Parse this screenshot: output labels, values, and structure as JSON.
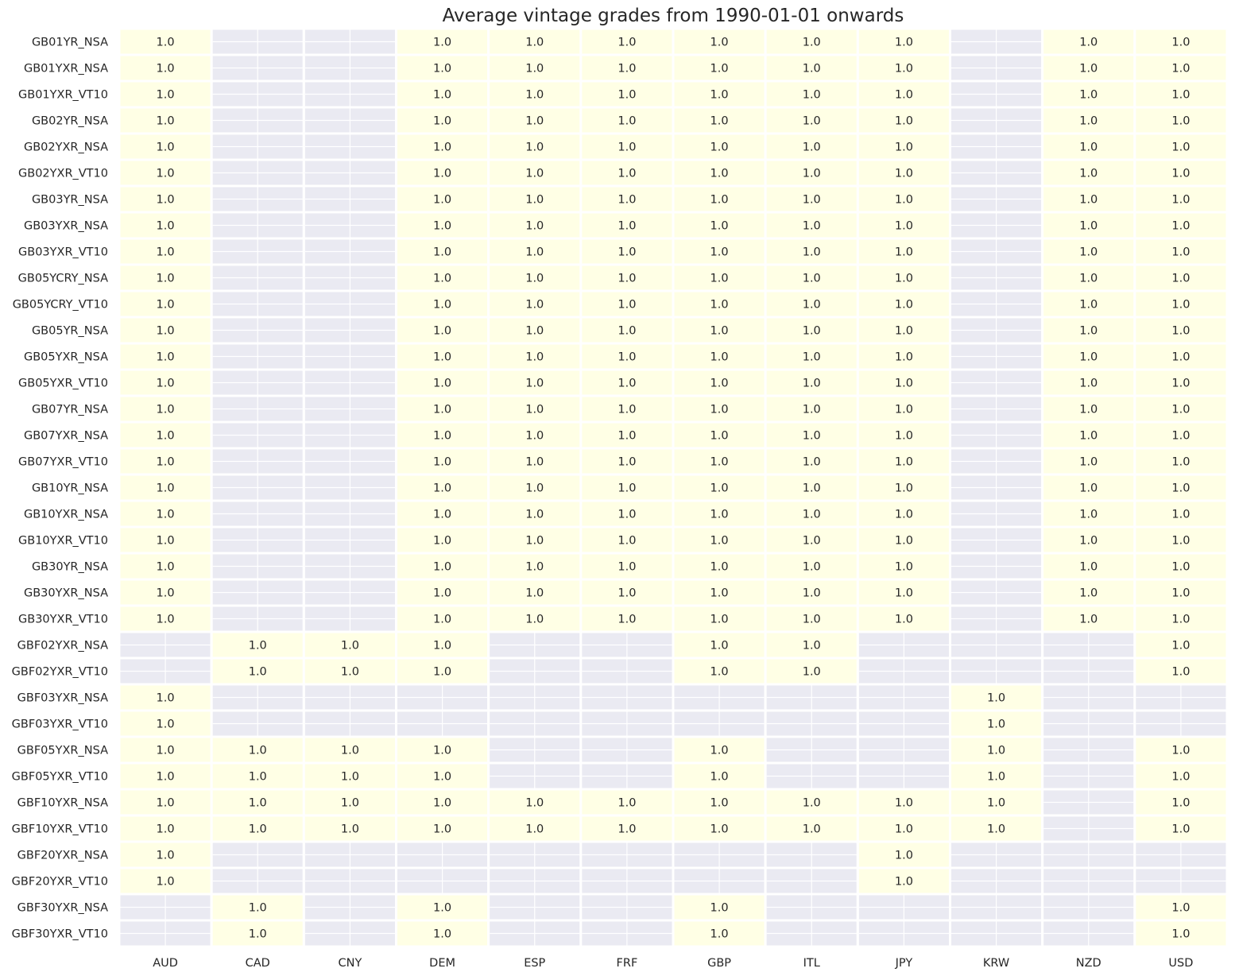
{
  "chart_data": {
    "type": "heatmap",
    "title": "Average vintage grades from 1990-01-01 onwards",
    "xlabel": "",
    "ylabel": "",
    "columns": [
      "AUD",
      "CAD",
      "CNY",
      "DEM",
      "ESP",
      "FRF",
      "GBP",
      "ITL",
      "JPY",
      "KRW",
      "NZD",
      "USD"
    ],
    "rows": [
      "GB01YR_NSA",
      "GB01YXR_NSA",
      "GB01YXR_VT10",
      "GB02YR_NSA",
      "GB02YXR_NSA",
      "GB02YXR_VT10",
      "GB03YR_NSA",
      "GB03YXR_NSA",
      "GB03YXR_VT10",
      "GB05YCRY_NSA",
      "GB05YCRY_VT10",
      "GB05YR_NSA",
      "GB05YXR_NSA",
      "GB05YXR_VT10",
      "GB07YR_NSA",
      "GB07YXR_NSA",
      "GB07YXR_VT10",
      "GB10YR_NSA",
      "GB10YXR_NSA",
      "GB10YXR_VT10",
      "GB30YR_NSA",
      "GB30YXR_NSA",
      "GB30YXR_VT10",
      "GBF02YXR_NSA",
      "GBF02YXR_VT10",
      "GBF03YXR_NSA",
      "GBF03YXR_VT10",
      "GBF05YXR_NSA",
      "GBF05YXR_VT10",
      "GBF10YXR_NSA",
      "GBF10YXR_VT10",
      "GBF20YXR_NSA",
      "GBF20YXR_VT10",
      "GBF30YXR_NSA",
      "GBF30YXR_VT10"
    ],
    "values": [
      [
        1.0,
        null,
        null,
        1.0,
        1.0,
        1.0,
        1.0,
        1.0,
        1.0,
        null,
        1.0,
        1.0
      ],
      [
        1.0,
        null,
        null,
        1.0,
        1.0,
        1.0,
        1.0,
        1.0,
        1.0,
        null,
        1.0,
        1.0
      ],
      [
        1.0,
        null,
        null,
        1.0,
        1.0,
        1.0,
        1.0,
        1.0,
        1.0,
        null,
        1.0,
        1.0
      ],
      [
        1.0,
        null,
        null,
        1.0,
        1.0,
        1.0,
        1.0,
        1.0,
        1.0,
        null,
        1.0,
        1.0
      ],
      [
        1.0,
        null,
        null,
        1.0,
        1.0,
        1.0,
        1.0,
        1.0,
        1.0,
        null,
        1.0,
        1.0
      ],
      [
        1.0,
        null,
        null,
        1.0,
        1.0,
        1.0,
        1.0,
        1.0,
        1.0,
        null,
        1.0,
        1.0
      ],
      [
        1.0,
        null,
        null,
        1.0,
        1.0,
        1.0,
        1.0,
        1.0,
        1.0,
        null,
        1.0,
        1.0
      ],
      [
        1.0,
        null,
        null,
        1.0,
        1.0,
        1.0,
        1.0,
        1.0,
        1.0,
        null,
        1.0,
        1.0
      ],
      [
        1.0,
        null,
        null,
        1.0,
        1.0,
        1.0,
        1.0,
        1.0,
        1.0,
        null,
        1.0,
        1.0
      ],
      [
        1.0,
        null,
        null,
        1.0,
        1.0,
        1.0,
        1.0,
        1.0,
        1.0,
        null,
        1.0,
        1.0
      ],
      [
        1.0,
        null,
        null,
        1.0,
        1.0,
        1.0,
        1.0,
        1.0,
        1.0,
        null,
        1.0,
        1.0
      ],
      [
        1.0,
        null,
        null,
        1.0,
        1.0,
        1.0,
        1.0,
        1.0,
        1.0,
        null,
        1.0,
        1.0
      ],
      [
        1.0,
        null,
        null,
        1.0,
        1.0,
        1.0,
        1.0,
        1.0,
        1.0,
        null,
        1.0,
        1.0
      ],
      [
        1.0,
        null,
        null,
        1.0,
        1.0,
        1.0,
        1.0,
        1.0,
        1.0,
        null,
        1.0,
        1.0
      ],
      [
        1.0,
        null,
        null,
        1.0,
        1.0,
        1.0,
        1.0,
        1.0,
        1.0,
        null,
        1.0,
        1.0
      ],
      [
        1.0,
        null,
        null,
        1.0,
        1.0,
        1.0,
        1.0,
        1.0,
        1.0,
        null,
        1.0,
        1.0
      ],
      [
        1.0,
        null,
        null,
        1.0,
        1.0,
        1.0,
        1.0,
        1.0,
        1.0,
        null,
        1.0,
        1.0
      ],
      [
        1.0,
        null,
        null,
        1.0,
        1.0,
        1.0,
        1.0,
        1.0,
        1.0,
        null,
        1.0,
        1.0
      ],
      [
        1.0,
        null,
        null,
        1.0,
        1.0,
        1.0,
        1.0,
        1.0,
        1.0,
        null,
        1.0,
        1.0
      ],
      [
        1.0,
        null,
        null,
        1.0,
        1.0,
        1.0,
        1.0,
        1.0,
        1.0,
        null,
        1.0,
        1.0
      ],
      [
        1.0,
        null,
        null,
        1.0,
        1.0,
        1.0,
        1.0,
        1.0,
        1.0,
        null,
        1.0,
        1.0
      ],
      [
        1.0,
        null,
        null,
        1.0,
        1.0,
        1.0,
        1.0,
        1.0,
        1.0,
        null,
        1.0,
        1.0
      ],
      [
        1.0,
        null,
        null,
        1.0,
        1.0,
        1.0,
        1.0,
        1.0,
        1.0,
        null,
        1.0,
        1.0
      ],
      [
        null,
        1.0,
        1.0,
        1.0,
        null,
        null,
        1.0,
        1.0,
        null,
        null,
        null,
        1.0
      ],
      [
        null,
        1.0,
        1.0,
        1.0,
        null,
        null,
        1.0,
        1.0,
        null,
        null,
        null,
        1.0
      ],
      [
        1.0,
        null,
        null,
        null,
        null,
        null,
        null,
        null,
        null,
        1.0,
        null,
        null
      ],
      [
        1.0,
        null,
        null,
        null,
        null,
        null,
        null,
        null,
        null,
        1.0,
        null,
        null
      ],
      [
        1.0,
        1.0,
        1.0,
        1.0,
        null,
        null,
        1.0,
        null,
        null,
        1.0,
        null,
        1.0
      ],
      [
        1.0,
        1.0,
        1.0,
        1.0,
        null,
        null,
        1.0,
        null,
        null,
        1.0,
        null,
        1.0
      ],
      [
        1.0,
        1.0,
        1.0,
        1.0,
        1.0,
        1.0,
        1.0,
        1.0,
        1.0,
        1.0,
        null,
        1.0
      ],
      [
        1.0,
        1.0,
        1.0,
        1.0,
        1.0,
        1.0,
        1.0,
        1.0,
        1.0,
        1.0,
        null,
        1.0
      ],
      [
        1.0,
        null,
        null,
        null,
        null,
        null,
        null,
        null,
        1.0,
        null,
        null,
        null
      ],
      [
        1.0,
        null,
        null,
        null,
        null,
        null,
        null,
        null,
        1.0,
        null,
        null,
        null
      ],
      [
        null,
        1.0,
        null,
        1.0,
        null,
        null,
        1.0,
        null,
        null,
        null,
        null,
        1.0
      ],
      [
        null,
        1.0,
        null,
        1.0,
        null,
        null,
        1.0,
        null,
        null,
        null,
        null,
        1.0
      ]
    ],
    "value_format": "1.0",
    "colors": {
      "filled": "#ffffe5",
      "empty": "#eaeaf2",
      "grid": "#ffffff",
      "text": "#262626"
    },
    "grid": true,
    "legend": "none"
  }
}
